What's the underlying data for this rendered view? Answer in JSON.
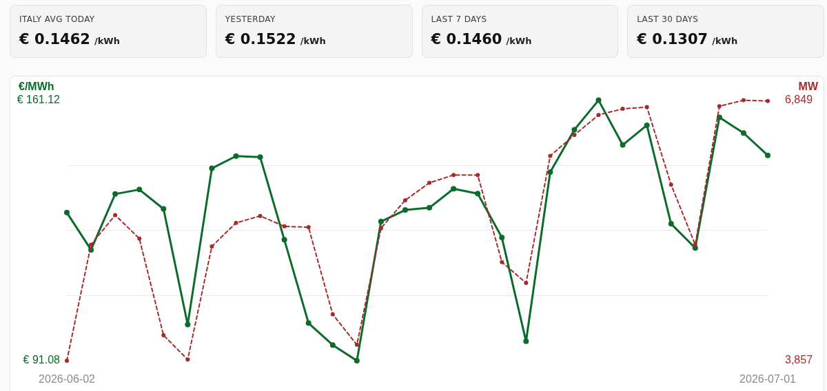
{
  "chart_data": [
    {
      "type": "other",
      "title": "ITALY AVG TODAY",
      "annotations": [
        "€ 0.1462",
        "/kWh"
      ]
    },
    {
      "type": "other",
      "title": "YESTERDAY",
      "annotations": [
        "€ 0.1522",
        "/kWh"
      ]
    },
    {
      "type": "other",
      "title": "LAST 7 DAYS",
      "annotations": [
        "€ 0.1460",
        "/kWh"
      ]
    },
    {
      "type": "other",
      "title": "LAST 30 DAYS",
      "annotations": [
        "€ 0.1307",
        "/kWh"
      ]
    },
    {
      "type": "line",
      "ylabel": "€/MWh",
      "y2label": "MW",
      "categories": [
        "2026-06-02",
        null,
        null,
        null,
        null,
        null,
        null,
        null,
        null,
        null,
        null,
        null,
        null,
        null,
        null,
        null,
        null,
        null,
        null,
        null,
        null,
        null,
        null,
        null,
        null,
        null,
        null,
        null,
        null,
        "2026-07-01"
      ],
      "series": [
        {
          "color": "#0b6b2a",
          "line_style": "solid",
          "axis": "y",
          "values": [
            130.9,
            120.9,
            135.9,
            137.1,
            131.9,
            100.8,
            142.8,
            146.1,
            145.8,
            123.6,
            101.2,
            95.3,
            91.08,
            128.5,
            131.6,
            132.2,
            137.3,
            136.0,
            124.2,
            96.3,
            141.8,
            153.2,
            161.12,
            149.1,
            154.4,
            127.9,
            121.4,
            156.5,
            152.3,
            146.3
          ]
        },
        {
          "color": "#a52a2a",
          "line_style": "dashed",
          "axis": "y2",
          "values": [
            3857,
            5190,
            5530,
            5260,
            4150,
            3870,
            5170,
            5440,
            5520,
            5400,
            5390,
            4390,
            4040,
            5380,
            5700,
            5900,
            5990,
            5990,
            4990,
            4750,
            6210,
            6450,
            6680,
            6750,
            6770,
            5880,
            5190,
            6780,
            6849,
            6840
          ]
        }
      ],
      "ylim": [
        91.08,
        161.12
      ],
      "yticks": [
        {
          "value": 91.08,
          "label": "€ 91.08"
        },
        {
          "value": 108.59,
          "label": null
        },
        {
          "value": 126.1,
          "label": null
        },
        {
          "value": 143.61,
          "label": null
        },
        {
          "value": 161.12,
          "label": "€ 161.12"
        }
      ],
      "y2lim": [
        3857,
        6849
      ],
      "y2ticks": [
        {
          "value": 3857,
          "label": "3,857"
        },
        {
          "value": 4605,
          "label": null
        },
        {
          "value": 5353,
          "label": null
        },
        {
          "value": 6101,
          "label": null
        },
        {
          "value": 6849,
          "label": "6,849"
        }
      ],
      "grid": "y",
      "marker": "circle",
      "legend": false
    }
  ]
}
